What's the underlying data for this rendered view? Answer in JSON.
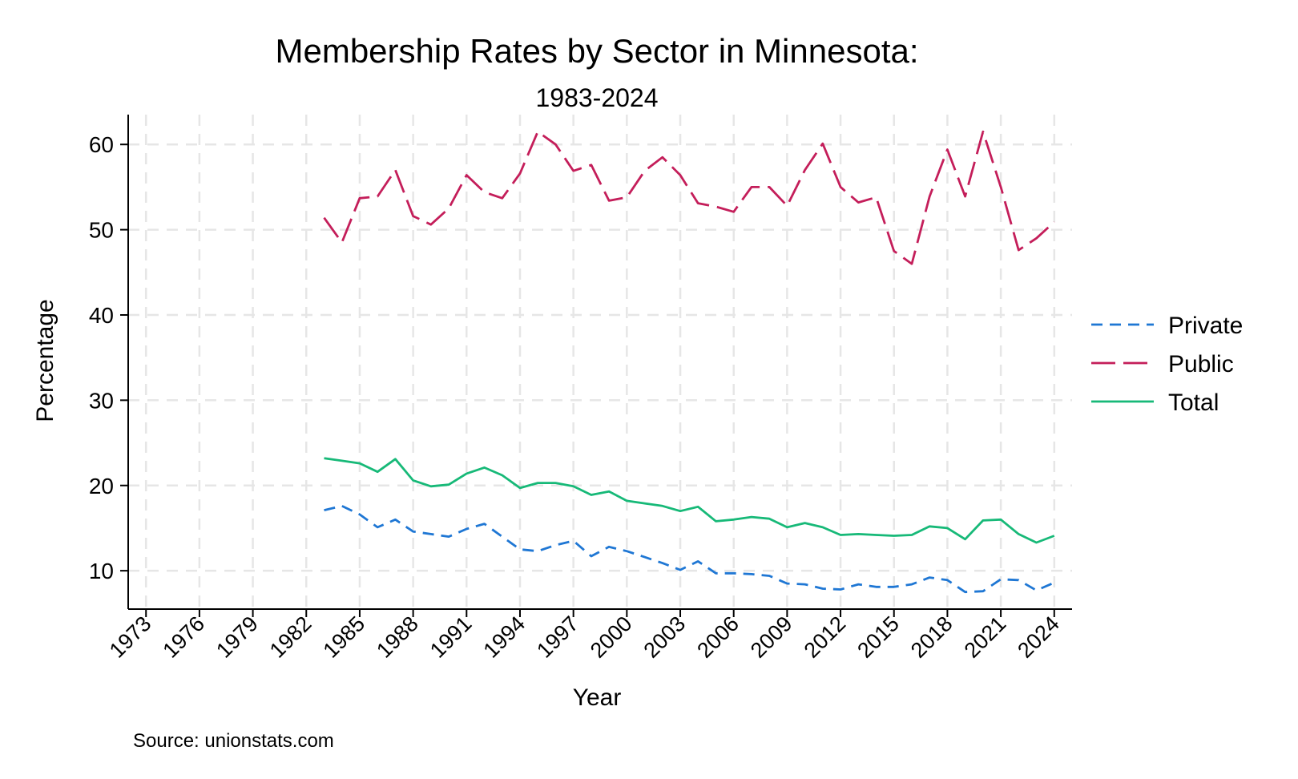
{
  "chart_data": {
    "type": "line",
    "title": "Membership Rates by Sector in Minnesota:",
    "subtitle": "1983-2024",
    "xlabel": "Year",
    "ylabel": "Percentage",
    "xlim": [
      1972,
      2025
    ],
    "ylim": [
      5.5,
      63.5
    ],
    "xticks": [
      1973,
      1976,
      1979,
      1982,
      1985,
      1988,
      1991,
      1994,
      1997,
      2000,
      2003,
      2006,
      2009,
      2012,
      2015,
      2018,
      2021,
      2024
    ],
    "yticks": [
      10,
      20,
      30,
      40,
      50,
      60
    ],
    "grid": true,
    "legend_position": "right",
    "note": "Source: unionstats.com",
    "x": [
      1983,
      1984,
      1985,
      1986,
      1987,
      1988,
      1989,
      1990,
      1991,
      1992,
      1993,
      1994,
      1995,
      1996,
      1997,
      1998,
      1999,
      2000,
      2001,
      2002,
      2003,
      2004,
      2005,
      2006,
      2007,
      2008,
      2009,
      2010,
      2011,
      2012,
      2013,
      2014,
      2015,
      2016,
      2017,
      2018,
      2019,
      2020,
      2021,
      2022,
      2023,
      2024
    ],
    "series": [
      {
        "name": "Private",
        "color": "#1f77d4",
        "dash": "short",
        "values": [
          17.1,
          17.6,
          16.6,
          15.1,
          16.0,
          14.6,
          14.3,
          14.0,
          14.9,
          15.5,
          14.0,
          12.5,
          12.3,
          13.0,
          13.5,
          11.7,
          12.8,
          12.3,
          11.6,
          10.9,
          10.1,
          11.1,
          9.7,
          9.7,
          9.6,
          9.4,
          8.5,
          8.4,
          7.9,
          7.8,
          8.4,
          8.1,
          8.1,
          8.4,
          9.2,
          8.9,
          7.5,
          7.6,
          9.0,
          8.9,
          7.7,
          8.6
        ]
      },
      {
        "name": "Public",
        "color": "#c41e5a",
        "dash": "long",
        "values": [
          51.4,
          48.5,
          53.7,
          53.9,
          57.0,
          51.6,
          50.6,
          52.5,
          56.4,
          54.4,
          53.7,
          56.6,
          61.5,
          60.0,
          56.9,
          57.6,
          53.4,
          53.8,
          56.9,
          58.5,
          56.4,
          53.1,
          52.7,
          52.1,
          55.0,
          55.0,
          52.8,
          57.0,
          60.1,
          55.0,
          53.2,
          53.8,
          47.5,
          46.0,
          53.9,
          59.4,
          53.9,
          61.5,
          55.0,
          47.6,
          49.0,
          50.9
        ]
      },
      {
        "name": "Total",
        "color": "#17b978",
        "dash": "solid",
        "values": [
          23.2,
          22.9,
          22.6,
          21.6,
          23.1,
          20.6,
          19.9,
          20.1,
          21.4,
          22.1,
          21.2,
          19.7,
          20.3,
          20.3,
          19.9,
          18.9,
          19.3,
          18.2,
          17.9,
          17.6,
          17.0,
          17.5,
          15.8,
          16.0,
          16.3,
          16.1,
          15.1,
          15.6,
          15.1,
          14.2,
          14.3,
          14.2,
          14.1,
          14.2,
          15.2,
          15.0,
          13.7,
          15.9,
          16.0,
          14.3,
          13.3,
          14.1
        ]
      }
    ]
  }
}
